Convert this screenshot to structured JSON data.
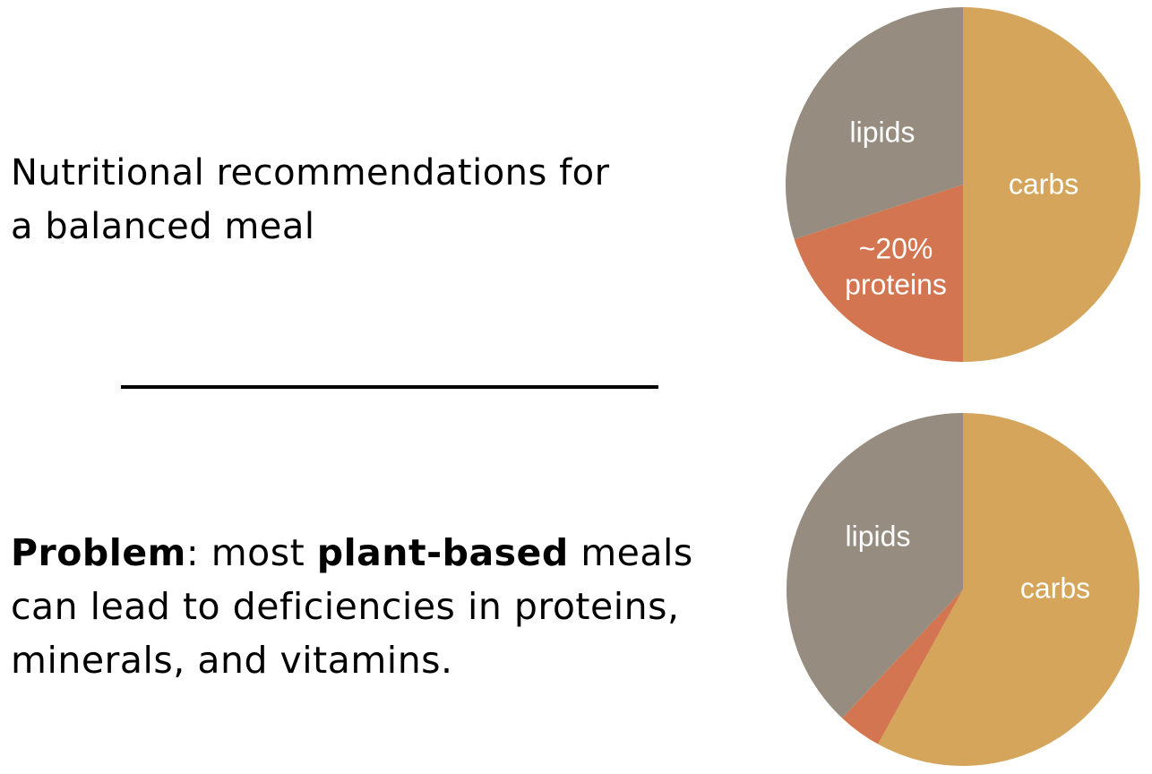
{
  "intro": {
    "line1": "Nutritional recommendations for",
    "line2": "a balanced meal"
  },
  "problem": {
    "bold1": "Problem",
    "t1": ": most ",
    "bold2": "plant-based",
    "t2": " meals",
    "line2": "can lead to deficiencies in proteins,",
    "line3": "minerals, and vitamins."
  },
  "colors": {
    "carbs": "#D4A55A",
    "proteins": "#D27550",
    "lipids": "#968D80"
  },
  "chart_data": [
    {
      "type": "pie",
      "categories": [
        "carbs",
        "proteins",
        "lipids"
      ],
      "values": [
        50,
        20,
        30
      ],
      "labels": {
        "carbs": "carbs",
        "proteins_pct": "~20%",
        "proteins": "proteins",
        "lipids": "lipids"
      }
    },
    {
      "type": "pie",
      "categories": [
        "carbs",
        "proteins",
        "lipids"
      ],
      "values": [
        58,
        4,
        38
      ],
      "labels": {
        "carbs": "carbs",
        "lipids": "lipids"
      }
    }
  ]
}
